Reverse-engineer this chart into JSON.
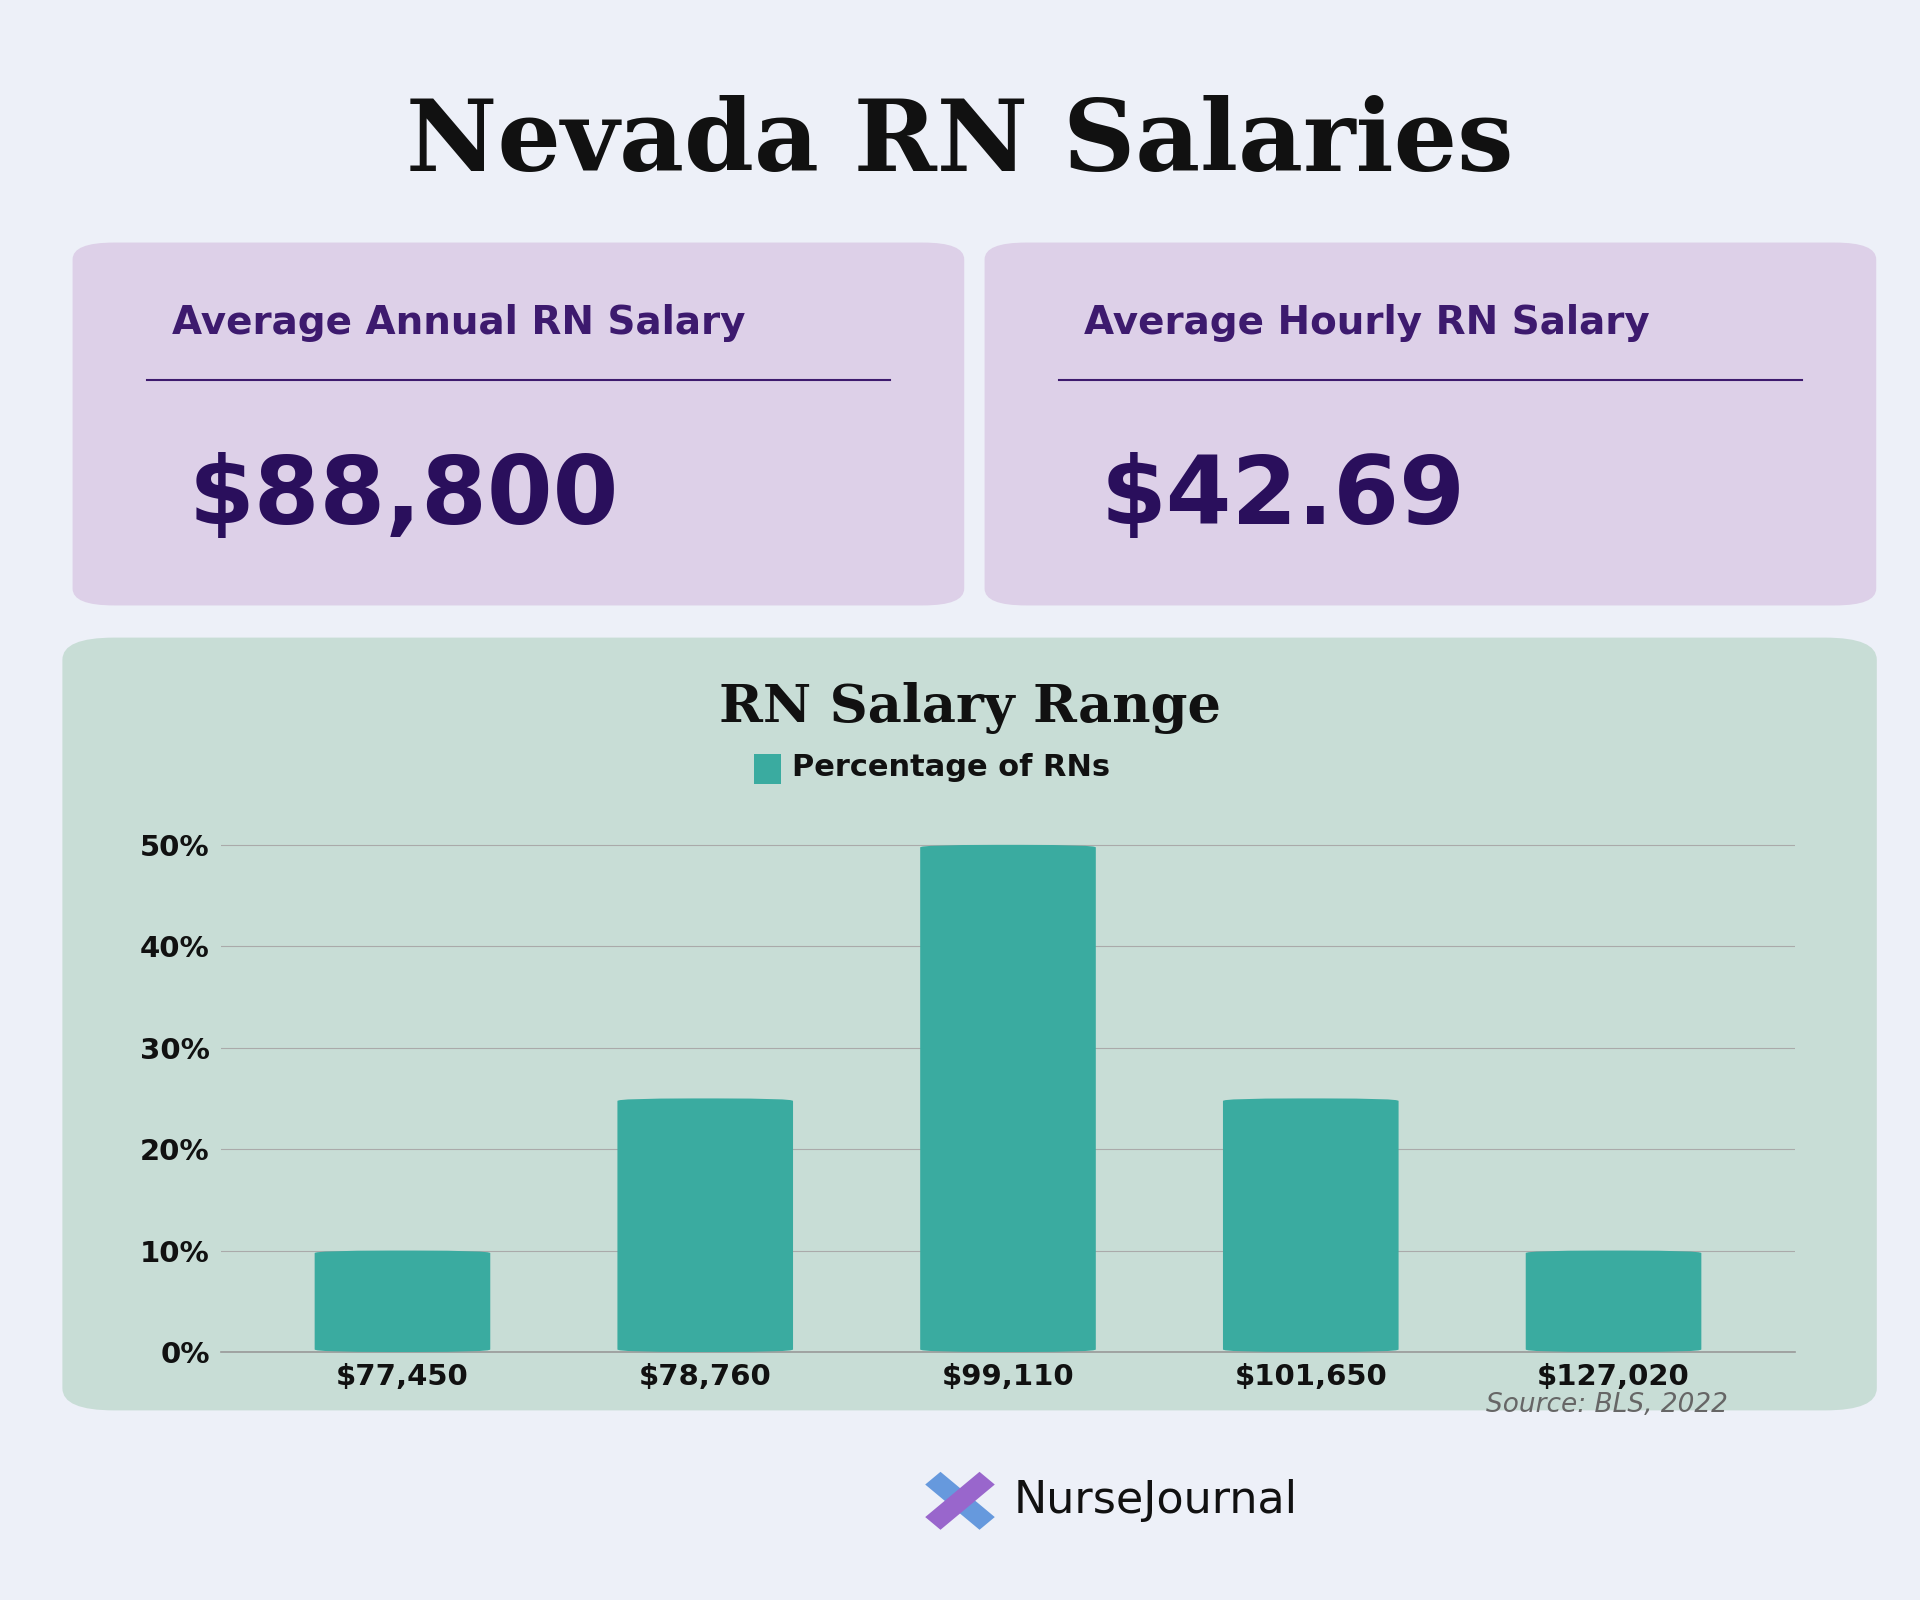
{
  "title": "Nevada RN Salaries",
  "title_fontsize": 72,
  "bg_color": "#edf0f8",
  "purple_box_color": "#ddd0e8",
  "card1_label": "Average Annual RN Salary",
  "card1_value": "$88,800",
  "card2_label": "Average Hourly RN Salary",
  "card2_value": "$42.69",
  "card_label_color": "#3d1a6e",
  "card_value_color": "#2a0f5c",
  "chart_title": "RN Salary Range",
  "chart_legend": "Percentage of RNs",
  "bar_categories": [
    "$77,450",
    "$78,760",
    "$99,110",
    "$101,650",
    "$127,020"
  ],
  "bar_values": [
    10,
    25,
    50,
    25,
    10
  ],
  "bar_color": "#3aaba0",
  "ytick_labels": [
    "0%",
    "10%",
    "20%",
    "30%",
    "40%",
    "50%"
  ],
  "ytick_values": [
    0,
    10,
    20,
    30,
    40,
    50
  ],
  "source_text": "Source: BLS, 2022",
  "source_color": "#666666",
  "logo_text": "NurseJournal",
  "chart_bg_color": "#c8ddd6",
  "bar_chart_bg": "#c8ddd6"
}
